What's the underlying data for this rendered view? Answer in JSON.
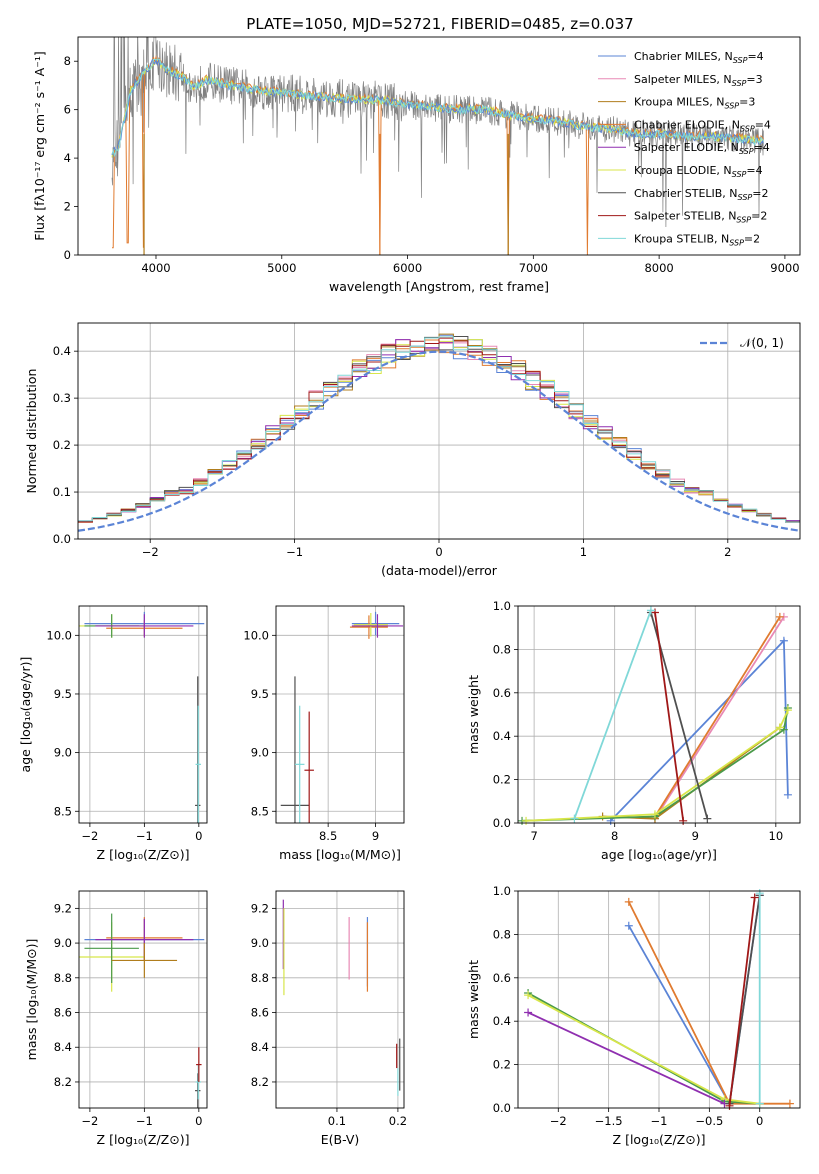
{
  "title": "PLATE=1050, MJD=52721, FIBERID=0485, z=0.037",
  "colors": {
    "chabrier_miles": "#5b84d6",
    "salpeter_miles": "#e889b5",
    "kroupa_miles": "#b07d1d",
    "chabrier_elodie": "#e07b30",
    "salpeter_elodie": "#8f2fb0",
    "kroupa_elodie": "#d8e64a",
    "chabrier_stelib": "#505050",
    "salpeter_stelib": "#a01818",
    "kroupa_stelib": "#80d8d8",
    "gauss": "#5b84d6",
    "green": "#4a9a4a"
  },
  "chart_data": [
    {
      "id": "spectrum",
      "type": "line",
      "xlabel": "wavelength [Angstrom, rest frame]",
      "ylabel": "Flux [fλ10⁻¹⁷ erg cm⁻² s⁻¹ A⁻¹]",
      "xlim": [
        3380,
        9120
      ],
      "ylim": [
        0,
        9
      ],
      "xticks": [
        4000,
        5000,
        6000,
        7000,
        8000,
        9000
      ],
      "yticks": [
        0,
        2,
        4,
        6,
        8
      ],
      "legend_position": "top-right",
      "legend": [
        {
          "label": "Chabrier MILES, N",
          "sub": "SSP",
          "tail": "=4",
          "color": "#5b84d6"
        },
        {
          "label": "Salpeter MILES, N",
          "sub": "SSP",
          "tail": "=3",
          "color": "#e889b5"
        },
        {
          "label": "Kroupa MILES, N",
          "sub": "SSP",
          "tail": "=3",
          "color": "#b07d1d"
        },
        {
          "label": "Chabrier ELODIE, N",
          "sub": "SSP",
          "tail": "=4",
          "color": "#e07b30"
        },
        {
          "label": "Salpeter ELODIE, N",
          "sub": "SSP",
          "tail": "=4",
          "color": "#8f2fb0"
        },
        {
          "label": "Kroupa ELODIE, N",
          "sub": "SSP",
          "tail": "=4",
          "color": "#d8e64a"
        },
        {
          "label": "Chabrier STELIB, N",
          "sub": "SSP",
          "tail": "=2",
          "color": "#505050"
        },
        {
          "label": "Salpeter STELIB, N",
          "sub": "SSP",
          "tail": "=2",
          "color": "#a01818"
        },
        {
          "label": "Kroupa STELIB, N",
          "sub": "SSP",
          "tail": "=2",
          "color": "#80d8d8"
        }
      ],
      "continuum": [
        [
          3650,
          4.2
        ],
        [
          3700,
          4.4
        ],
        [
          3800,
          6.8
        ],
        [
          3900,
          7.5
        ],
        [
          4000,
          8.1
        ],
        [
          4100,
          7.6
        ],
        [
          4200,
          7.4
        ],
        [
          4300,
          6.9
        ],
        [
          4400,
          7.2
        ],
        [
          4600,
          7.0
        ],
        [
          4800,
          6.8
        ],
        [
          5000,
          6.7
        ],
        [
          5200,
          6.6
        ],
        [
          5400,
          6.5
        ],
        [
          5600,
          6.4
        ],
        [
          5800,
          6.4
        ],
        [
          6000,
          6.2
        ],
        [
          6200,
          6.1
        ],
        [
          6400,
          6.0
        ],
        [
          6600,
          6.0
        ],
        [
          6800,
          5.8
        ],
        [
          7000,
          5.6
        ],
        [
          7200,
          5.5
        ],
        [
          7400,
          5.3
        ],
        [
          7600,
          5.2
        ],
        [
          7800,
          5.0
        ],
        [
          8000,
          5.0
        ],
        [
          8200,
          4.9
        ],
        [
          8400,
          4.9
        ],
        [
          8600,
          4.8
        ],
        [
          8800,
          4.7
        ]
      ],
      "model_dips": [
        [
          3655,
          0.3
        ],
        [
          3775,
          0.5
        ],
        [
          3900,
          0.3
        ],
        [
          5780,
          0
        ],
        [
          6800,
          0
        ],
        [
          7430,
          0
        ]
      ]
    },
    {
      "id": "residuals",
      "type": "histogram",
      "xlabel": "(data-model)/error",
      "ylabel": "Normed distribution",
      "xlim": [
        -2.5,
        2.5
      ],
      "ylim": [
        0,
        0.46
      ],
      "xticks": [
        -2,
        -1,
        0,
        1,
        2
      ],
      "yticks": [
        0,
        0.1,
        0.2,
        0.3,
        0.4
      ],
      "legend": [
        {
          "label": "𝒩(0, 1)"
        }
      ],
      "bin_width": 0.1,
      "bin_start": -2.5,
      "gaussian": {
        "mean": 0,
        "sigma": 1
      }
    },
    {
      "id": "age_vs_Z",
      "type": "scatter",
      "xlabel": "Z [log₁₀(Z/Z⊙)]",
      "ylabel": "age  [log₁₀(age/yr)]",
      "xlim": [
        -2.2,
        0.15
      ],
      "ylim": [
        8.4,
        10.25
      ],
      "xticks": [
        -2,
        -1,
        0
      ],
      "yticks": [
        8.5,
        9.0,
        9.5,
        10.0
      ],
      "points": [
        {
          "x": -1.0,
          "y": 10.1,
          "xerr": 1.1,
          "yerr": 0.1,
          "color": "#5b84d6"
        },
        {
          "x": -1.0,
          "y": 10.06,
          "xerr": 0.7,
          "yerr": 0.07,
          "color": "#e07b30"
        },
        {
          "x": -1.6,
          "y": 10.08,
          "xerr": 0.6,
          "yerr": 0.1,
          "color": "#d8e64a"
        },
        {
          "x": -1.6,
          "y": 10.08,
          "xerr": 0.5,
          "yerr": 0.1,
          "color": "#4a9a4a"
        },
        {
          "x": -1.0,
          "y": 10.08,
          "xerr": 0.9,
          "yerr": 0.1,
          "color": "#8f2fb0"
        },
        {
          "x": -0.02,
          "y": 8.55,
          "xerr": 0.05,
          "yerr": 1.1,
          "color": "#505050"
        },
        {
          "x": -0.01,
          "y": 8.9,
          "xerr": 0.05,
          "yerr": 0.5,
          "color": "#80d8d8"
        }
      ]
    },
    {
      "id": "age_vs_mass",
      "type": "scatter",
      "xlabel": "mass [log₁₀(M/M⊙)]",
      "ylabel": "",
      "xlim": [
        7.95,
        9.3
      ],
      "ylim": [
        8.4,
        10.25
      ],
      "xticks": [
        8.5,
        9.0
      ],
      "yticks": [
        8.5,
        9.0,
        9.5,
        10.0
      ],
      "points": [
        {
          "x": 9.0,
          "y": 10.1,
          "xerr": 0.25,
          "yerr": 0.1,
          "color": "#5b84d6"
        },
        {
          "x": 8.93,
          "y": 10.07,
          "xerr": 0.2,
          "yerr": 0.1,
          "color": "#e07b30"
        },
        {
          "x": 8.95,
          "y": 10.09,
          "xerr": 0.18,
          "yerr": 0.1,
          "color": "#d8e64a"
        },
        {
          "x": 9.02,
          "y": 10.08,
          "xerr": 0.27,
          "yerr": 0.1,
          "color": "#8f2fb0"
        },
        {
          "x": 8.15,
          "y": 8.55,
          "xerr": 0.15,
          "yerr": 1.1,
          "color": "#505050"
        },
        {
          "x": 8.2,
          "y": 8.9,
          "xerr": 0.05,
          "yerr": 0.5,
          "color": "#80d8d8"
        },
        {
          "x": 8.3,
          "y": 8.85,
          "xerr": 0.05,
          "yerr": 0.5,
          "color": "#a01818"
        }
      ]
    },
    {
      "id": "weight_vs_age",
      "type": "line",
      "xlabel": "age  [log₁₀(age/yr)]",
      "ylabel": "mass weight",
      "xlim": [
        6.8,
        10.3
      ],
      "ylim": [
        0,
        1
      ],
      "xticks": [
        7,
        8,
        9,
        10
      ],
      "yticks": [
        0,
        0.2,
        0.4,
        0.6,
        0.8,
        1.0
      ],
      "series": [
        {
          "color": "#5b84d6",
          "x": [
            7.95,
            10.1,
            10.15
          ],
          "y": [
            0.01,
            0.84,
            0.13
          ]
        },
        {
          "color": "#e889b5",
          "x": [
            8.5,
            10.1
          ],
          "y": [
            0.02,
            0.95
          ]
        },
        {
          "color": "#e07b30",
          "x": [
            8.5,
            10.05
          ],
          "y": [
            0.03,
            0.95
          ]
        },
        {
          "color": "#b07d1d",
          "x": [
            7.85,
            8.5,
            10.05
          ],
          "y": [
            0.03,
            0.02,
            0.44
          ]
        },
        {
          "color": "#4a9a4a",
          "x": [
            6.85,
            8.5,
            10.1,
            10.15
          ],
          "y": [
            0.01,
            0.03,
            0.43,
            0.53
          ]
        },
        {
          "color": "#d8e64a",
          "x": [
            6.9,
            8.5,
            10.05,
            10.15
          ],
          "y": [
            0.01,
            0.04,
            0.44,
            0.52
          ]
        },
        {
          "color": "#505050",
          "x": [
            8.45,
            9.15
          ],
          "y": [
            0.97,
            0.02
          ]
        },
        {
          "color": "#a01818",
          "x": [
            8.5,
            8.85
          ],
          "y": [
            0.97,
            0.01
          ]
        },
        {
          "color": "#80d8d8",
          "x": [
            7.5,
            8.45
          ],
          "y": [
            0.02,
            0.98
          ]
        }
      ]
    },
    {
      "id": "mass_vs_Z",
      "type": "scatter",
      "xlabel": "Z [log₁₀(Z/Z⊙)]",
      "ylabel": "mass [log₁₀(M/M⊙)]",
      "xlim": [
        -2.2,
        0.15
      ],
      "ylim": [
        8.05,
        9.3
      ],
      "xticks": [
        -2,
        -1,
        0
      ],
      "yticks": [
        8.2,
        8.4,
        8.6,
        8.8,
        9.0,
        9.2
      ],
      "points": [
        {
          "x": -1.0,
          "y": 9.02,
          "xerr": 1.1,
          "yerr": 0.12,
          "color": "#5b84d6"
        },
        {
          "x": -1.0,
          "y": 9.03,
          "xerr": 0.7,
          "yerr": 0.12,
          "color": "#e07b30"
        },
        {
          "x": -1.6,
          "y": 8.92,
          "xerr": 0.6,
          "yerr": 0.2,
          "color": "#d8e64a"
        },
        {
          "x": -1.6,
          "y": 8.97,
          "xerr": 0.5,
          "yerr": 0.2,
          "color": "#4a9a4a"
        },
        {
          "x": -1.0,
          "y": 9.02,
          "xerr": 0.9,
          "yerr": 0.12,
          "color": "#8f2fb0"
        },
        {
          "x": -1.0,
          "y": 8.9,
          "xerr": 0.6,
          "yerr": 0.1,
          "color": "#b07d1d"
        },
        {
          "x": -0.02,
          "y": 8.15,
          "xerr": 0.05,
          "yerr": 0.1,
          "color": "#505050"
        },
        {
          "x": -0.01,
          "y": 8.2,
          "xerr": 0.05,
          "yerr": 0.1,
          "color": "#80d8d8"
        },
        {
          "x": 0.0,
          "y": 8.3,
          "xerr": 0.05,
          "yerr": 0.1,
          "color": "#a01818"
        }
      ]
    },
    {
      "id": "mass_vs_EBV",
      "type": "scatter",
      "xlabel": "E(B-V)",
      "ylabel": "",
      "xlim": [
        0.0,
        0.21
      ],
      "ylim": [
        8.05,
        9.3
      ],
      "xticks": [
        0.1,
        0.2
      ],
      "yticks": [
        8.2,
        8.4,
        8.6,
        8.8,
        9.0,
        9.2
      ],
      "points": [
        {
          "x": 0.012,
          "y": 9.05,
          "yerr": 0.2,
          "color": "#8f2fb0"
        },
        {
          "x": 0.013,
          "y": 8.95,
          "yerr": 0.25,
          "color": "#d8e64a"
        },
        {
          "x": 0.12,
          "y": 8.97,
          "yerr": 0.18,
          "color": "#e889b5"
        },
        {
          "x": 0.15,
          "y": 8.95,
          "yerr": 0.2,
          "color": "#5b84d6"
        },
        {
          "x": 0.15,
          "y": 8.92,
          "yerr": 0.2,
          "color": "#e07b30"
        },
        {
          "x": 0.198,
          "y": 8.35,
          "yerr": 0.07,
          "color": "#a01818"
        },
        {
          "x": 0.2,
          "y": 8.2,
          "yerr": 0.08,
          "color": "#80d8d8"
        },
        {
          "x": 0.203,
          "y": 8.3,
          "yerr": 0.15,
          "color": "#505050"
        }
      ]
    },
    {
      "id": "weight_vs_Z",
      "type": "line",
      "xlabel": "Z [log₁₀(Z/Z⊙)]",
      "ylabel": "mass weight",
      "xlim": [
        -2.4,
        0.4
      ],
      "ylim": [
        0,
        1
      ],
      "xticks": [
        -2.0,
        -1.5,
        -1.0,
        -0.5,
        0.0
      ],
      "yticks": [
        0,
        0.2,
        0.4,
        0.6,
        0.8,
        1.0
      ],
      "series": [
        {
          "color": "#5b84d6",
          "x": [
            -1.3,
            -0.3,
            0.0
          ],
          "y": [
            0.84,
            0.02,
            0.98
          ]
        },
        {
          "color": "#e07b30",
          "x": [
            -1.3,
            -0.3,
            0.3
          ],
          "y": [
            0.95,
            0.02,
            0.02
          ]
        },
        {
          "color": "#4a9a4a",
          "x": [
            -2.3,
            -0.35,
            0.0
          ],
          "y": [
            0.53,
            0.03,
            0.02
          ]
        },
        {
          "color": "#d8e64a",
          "x": [
            -2.3,
            -0.35,
            0.0
          ],
          "y": [
            0.52,
            0.04,
            0.02
          ]
        },
        {
          "color": "#8f2fb0",
          "x": [
            -2.3,
            -0.35
          ],
          "y": [
            0.44,
            0.02
          ]
        },
        {
          "color": "#505050",
          "x": [
            -0.3,
            0.0
          ],
          "y": [
            0.02,
            0.98
          ]
        },
        {
          "color": "#a01818",
          "x": [
            -0.3,
            -0.05
          ],
          "y": [
            0.01,
            0.97
          ]
        },
        {
          "color": "#80d8d8",
          "x": [
            0.0,
            0.0
          ],
          "y": [
            0.02,
            0.99
          ]
        }
      ]
    }
  ]
}
